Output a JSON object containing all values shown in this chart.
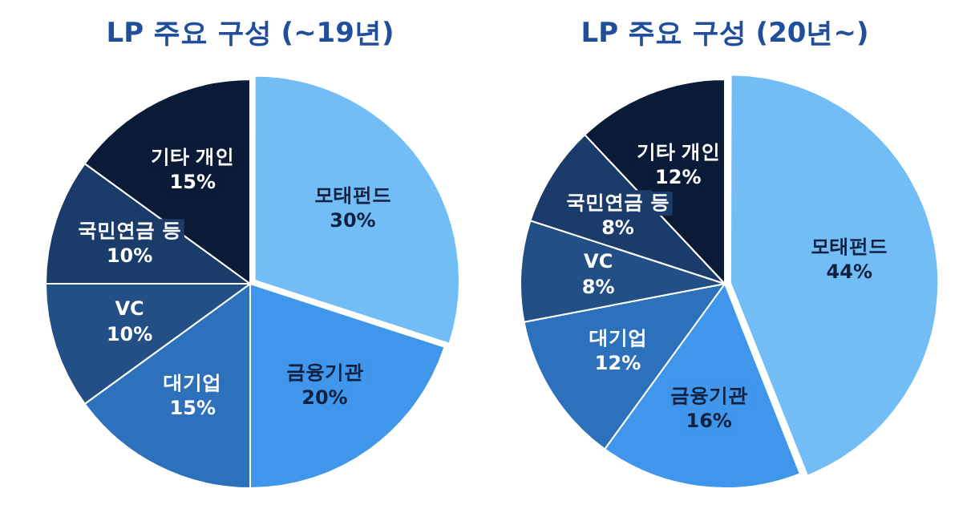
{
  "chart_data": [
    {
      "type": "pie",
      "title": "LP 주요 구성 (~19년)",
      "categories": [
        "모태펀드",
        "금융기관",
        "대기업",
        "VC",
        "국민연금 등",
        "기타 개인"
      ],
      "values": [
        30,
        20,
        15,
        10,
        10,
        15
      ],
      "value_labels": [
        "30%",
        "20%",
        "15%",
        "10%",
        "10%",
        "15%"
      ],
      "colors": [
        "#73bdf7",
        "#3f96ea",
        "#2d71bd",
        "#234f87",
        "#1b3c6b",
        "#0b1a36"
      ],
      "legend": false
    },
    {
      "type": "pie",
      "title": "LP 주요 구성 (20년~)",
      "categories": [
        "모태펀드",
        "금융기관",
        "대기업",
        "VC",
        "국민연금 등",
        "기타 개인"
      ],
      "values": [
        44,
        16,
        12,
        8,
        8,
        12
      ],
      "value_labels": [
        "44%",
        "16%",
        "12%",
        "8%",
        "8%",
        "12%"
      ],
      "colors": [
        "#73bdf7",
        "#3f96ea",
        "#2d71bd",
        "#234f87",
        "#1b3c6b",
        "#0b1a36"
      ],
      "legend": false
    }
  ]
}
